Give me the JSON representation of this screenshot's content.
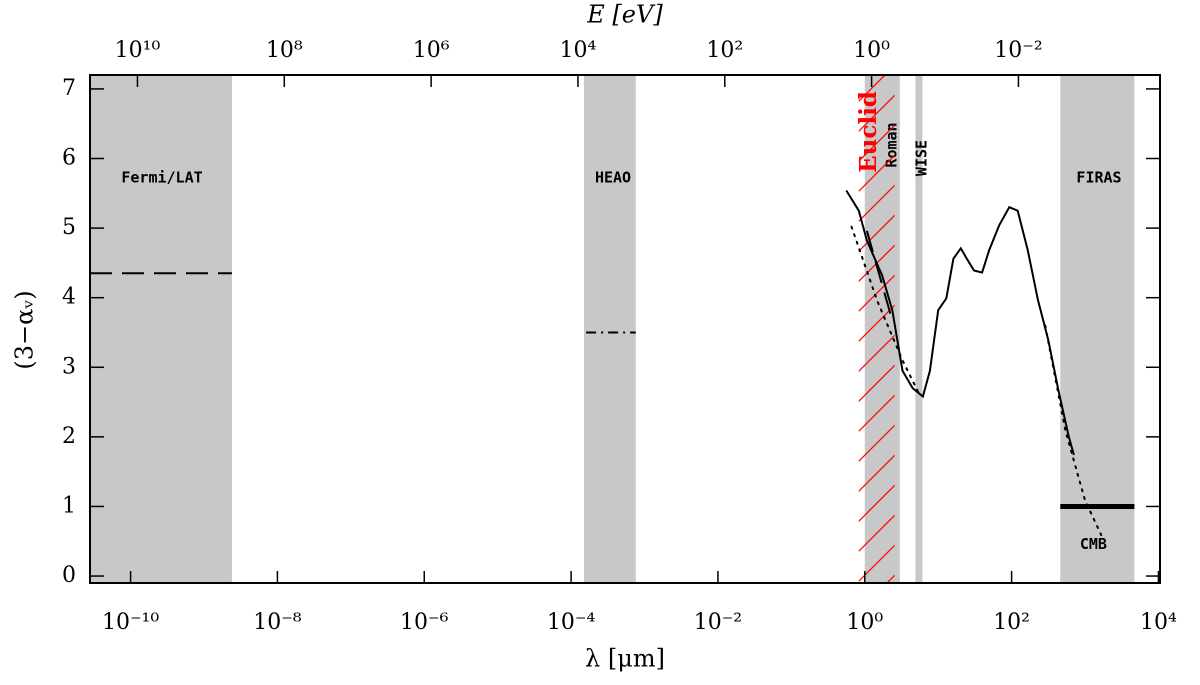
{
  "chart_data": {
    "type": "line",
    "x_label": "λ  [μm]",
    "x2_label": "E  [eV]",
    "y_label": "(3−αᵥ)",
    "xscale": "log",
    "xlim": [
      2.8e-11,
      10500
    ],
    "xticks": [
      {
        "value": 1e-10,
        "label": "10⁻¹⁰"
      },
      {
        "value": 1e-08,
        "label": "10⁻⁸"
      },
      {
        "value": 1e-06,
        "label": "10⁻⁶"
      },
      {
        "value": 0.0001,
        "label": "10⁻⁴"
      },
      {
        "value": 0.01,
        "label": "10⁻²"
      },
      {
        "value": 1,
        "label": "10⁰"
      },
      {
        "value": 100,
        "label": "10²"
      },
      {
        "value": 10000,
        "label": "10⁴"
      }
    ],
    "x2lim": [
      44300000000,
      0.000118
    ],
    "x2ticks": [
      {
        "value": 10000000000,
        "label": "10¹⁰"
      },
      {
        "value": 100000000,
        "label": "10⁸"
      },
      {
        "value": 1000000,
        "label": "10⁶"
      },
      {
        "value": 10000,
        "label": "10⁴"
      },
      {
        "value": 100,
        "label": "10²"
      },
      {
        "value": 1,
        "label": "10⁰"
      },
      {
        "value": 0.01,
        "label": "10⁻²"
      }
    ],
    "ylim": [
      -0.1,
      7.2
    ],
    "yticks": [
      0,
      1,
      2,
      3,
      4,
      5,
      6,
      7
    ],
    "bands": [
      {
        "label": "Fermi/LAT",
        "x": [
          2.8e-11,
          2.4e-09
        ],
        "color": "#c8c8c8"
      },
      {
        "label": "HEAO",
        "x": [
          0.00015,
          0.00076
        ],
        "color": "#c8c8c8"
      },
      {
        "label": "Roman",
        "x": [
          1.0,
          3.0
        ],
        "color": "#c8c8c8"
      },
      {
        "label": "WISE",
        "x": [
          4.9,
          6.1
        ],
        "color": "#c8c8c8"
      },
      {
        "label": "FIRAS",
        "x": [
          460,
          4700
        ],
        "color": "#c8c8c8"
      },
      {
        "label": "Euclid",
        "x": [
          0.83,
          2.55
        ],
        "color": "#ff0000",
        "hatch": true
      }
    ],
    "lines": [
      {
        "style": "solid",
        "width": 2,
        "color": "#000000",
        "x": [
          0.56,
          0.83,
          1.07,
          1.72,
          2.37,
          3.27,
          4.5,
          6.2,
          7.7,
          10,
          12.9,
          16.1,
          20.3,
          24.5,
          30.7,
          39.6,
          49.4,
          67.8,
          93,
          121,
          166,
          228,
          316,
          434,
          596,
          705
        ],
        "values": [
          5.54,
          5.25,
          4.82,
          4.32,
          3.82,
          2.95,
          2.7,
          2.58,
          2.95,
          3.82,
          3.99,
          4.56,
          4.71,
          4.56,
          4.39,
          4.36,
          4.68,
          5.04,
          5.3,
          5.25,
          4.68,
          3.97,
          3.39,
          2.67,
          2.02,
          1.74
        ]
      },
      {
        "style": "dotted",
        "width": 2,
        "color": "#000000",
        "x": [
          0.66,
          1.47,
          3.27,
          5.6,
          null,
          287,
          540,
          1000,
          1660
        ],
        "values": [
          5.02,
          3.96,
          3.1,
          2.6,
          null,
          3.6,
          2.09,
          1.09,
          0.59
        ]
      },
      {
        "style": "dashed",
        "width": 2,
        "color": "#000000",
        "x": [
          1.07,
          2.37
        ],
        "values": [
          4.96,
          3.67
        ]
      },
      {
        "style": "dashed",
        "width": 2,
        "color": "#000000",
        "x": [
          2.8e-11,
          2.4e-09
        ],
        "values": [
          4.35,
          4.35
        ]
      },
      {
        "style": "dashdot",
        "width": 2,
        "color": "#000000",
        "x": [
          0.00016,
          0.00076
        ],
        "values": [
          3.5,
          3.5
        ]
      },
      {
        "style": "solid",
        "width": 5,
        "color": "#000000",
        "x": [
          460,
          4700
        ],
        "values": [
          1.0,
          1.0
        ]
      }
    ],
    "annotations": [
      {
        "text": "CMB",
        "x": 1300,
        "y": 0.45
      }
    ]
  }
}
